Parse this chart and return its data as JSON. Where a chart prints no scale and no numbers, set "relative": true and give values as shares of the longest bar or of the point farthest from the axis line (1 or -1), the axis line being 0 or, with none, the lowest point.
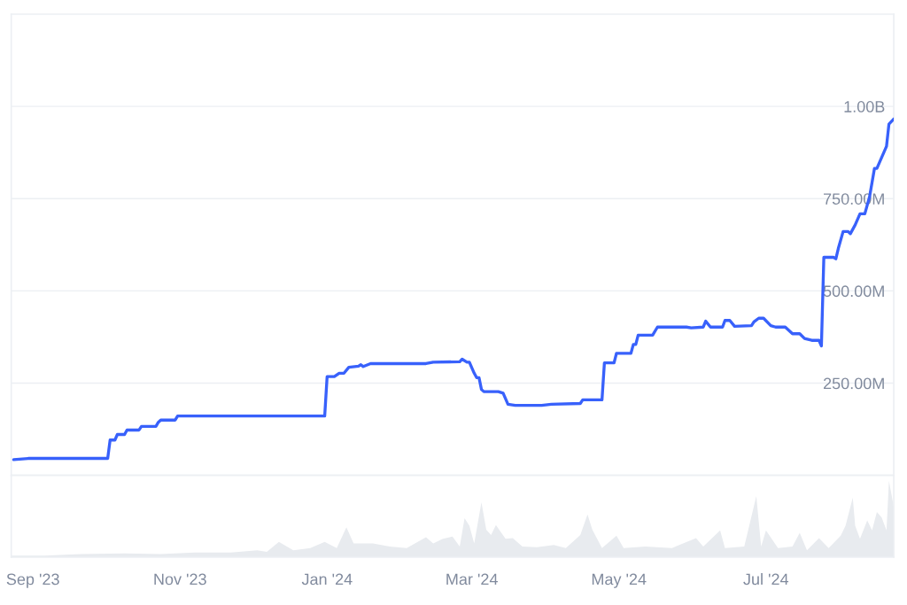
{
  "chart_data": [
    {
      "type": "line",
      "color": "#3861fb",
      "tick_labels": "y",
      "grid": "y",
      "xlim": [
        "2023-08-23",
        "2024-08-23"
      ],
      "ylim": [
        0,
        1250000000
      ],
      "yticks": [
        {
          "value": 250000000,
          "label": "250.00M"
        },
        {
          "value": 500000000,
          "label": "500.00M"
        },
        {
          "value": 750000000,
          "label": "750.00M"
        },
        {
          "value": 1000000000,
          "label": "1.00B"
        }
      ],
      "x": [
        "2023-08-24",
        "2023-08-30",
        "2023-10-02",
        "2023-10-03",
        "2023-10-05",
        "2023-10-06",
        "2023-10-09",
        "2023-10-10",
        "2023-10-15",
        "2023-10-16",
        "2023-10-22",
        "2023-10-23",
        "2023-10-24",
        "2023-10-30",
        "2023-10-31",
        "2023-12-31",
        "2024-01-01",
        "2024-01-04",
        "2024-01-06",
        "2024-01-08",
        "2024-01-10",
        "2024-01-14",
        "2024-01-15",
        "2024-01-16",
        "2024-01-19",
        "2024-02-11",
        "2024-02-14",
        "2024-02-25",
        "2024-02-26",
        "2024-02-28",
        "2024-02-29",
        "2024-03-02",
        "2024-03-03",
        "2024-03-04",
        "2024-03-05",
        "2024-03-06",
        "2024-03-12",
        "2024-03-14",
        "2024-03-16",
        "2024-03-19",
        "2024-03-30",
        "2024-04-03",
        "2024-04-15",
        "2024-04-16",
        "2024-04-24",
        "2024-04-25",
        "2024-04-29",
        "2024-04-30",
        "2024-05-06",
        "2024-05-07",
        "2024-05-08",
        "2024-05-09",
        "2024-05-15",
        "2024-05-17",
        "2024-05-29",
        "2024-05-31",
        "2024-06-05",
        "2024-06-06",
        "2024-06-08",
        "2024-06-13",
        "2024-06-14",
        "2024-06-16",
        "2024-06-18",
        "2024-06-25",
        "2024-06-26",
        "2024-06-28",
        "2024-06-30",
        "2024-07-03",
        "2024-07-05",
        "2024-07-09",
        "2024-07-12",
        "2024-07-15",
        "2024-07-17",
        "2024-07-20",
        "2024-07-23",
        "2024-07-24",
        "2024-07-25",
        "2024-07-29",
        "2024-07-30",
        "2024-07-31",
        "2024-08-02",
        "2024-08-04",
        "2024-08-05",
        "2024-08-07",
        "2024-08-09",
        "2024-08-11",
        "2024-08-13",
        "2024-08-15",
        "2024-08-16",
        "2024-08-20",
        "2024-08-21",
        "2024-08-23"
      ],
      "values": [
        43000000,
        46000000,
        46000000,
        96000000,
        96000000,
        111000000,
        111000000,
        123000000,
        123000000,
        133000000,
        133000000,
        144000000,
        150000000,
        150000000,
        161000000,
        161000000,
        268000000,
        268000000,
        277000000,
        277000000,
        293000000,
        296000000,
        300000000,
        295000000,
        303000000,
        303000000,
        307000000,
        308000000,
        315000000,
        307000000,
        307000000,
        277000000,
        265000000,
        265000000,
        233000000,
        227000000,
        227000000,
        223000000,
        193000000,
        190000000,
        190000000,
        193000000,
        195000000,
        205000000,
        205000000,
        305000000,
        305000000,
        331000000,
        331000000,
        355000000,
        355000000,
        380000000,
        380000000,
        402000000,
        402000000,
        400000000,
        402000000,
        418000000,
        402000000,
        402000000,
        420000000,
        420000000,
        404000000,
        406000000,
        416000000,
        426000000,
        426000000,
        406000000,
        402000000,
        402000000,
        384000000,
        384000000,
        371000000,
        366000000,
        366000000,
        351000000,
        591000000,
        591000000,
        587000000,
        615000000,
        661000000,
        661000000,
        655000000,
        679000000,
        709000000,
        709000000,
        756000000,
        832000000,
        832000000,
        892000000,
        952000000,
        966000000
      ]
    },
    {
      "type": "area",
      "relative": true,
      "color": "#e8ebef",
      "tick_labels": "x",
      "xlim": [
        "2023-08-23",
        "2024-08-23"
      ],
      "xticks": [
        {
          "value": "2023-09-01",
          "label": "Sep '23"
        },
        {
          "value": "2023-11-01",
          "label": "Nov '23"
        },
        {
          "value": "2024-01-01",
          "label": "Jan '24"
        },
        {
          "value": "2024-03-01",
          "label": "Mar '24"
        },
        {
          "value": "2024-05-01",
          "label": "May '24"
        },
        {
          "value": "2024-07-01",
          "label": "Jul '24"
        }
      ],
      "x": [
        "2023-08-23",
        "2023-09-06",
        "2023-09-21",
        "2023-10-09",
        "2023-10-24",
        "2023-11-07",
        "2023-11-22",
        "2023-12-03",
        "2023-12-07",
        "2023-12-12",
        "2023-12-18",
        "2023-12-25",
        "2023-12-31",
        "2024-01-05",
        "2024-01-09",
        "2024-01-12",
        "2024-01-20",
        "2024-01-27",
        "2024-02-03",
        "2024-02-11",
        "2024-02-14",
        "2024-02-18",
        "2024-02-22",
        "2024-02-25",
        "2024-02-27",
        "2024-02-29",
        "2024-03-02",
        "2024-03-05",
        "2024-03-07",
        "2024-03-09",
        "2024-03-11",
        "2024-03-15",
        "2024-03-18",
        "2024-03-22",
        "2024-03-28",
        "2024-04-04",
        "2024-04-09",
        "2024-04-15",
        "2024-04-18",
        "2024-04-20",
        "2024-04-24",
        "2024-04-30",
        "2024-05-03",
        "2024-05-12",
        "2024-05-23",
        "2024-06-02",
        "2024-06-05",
        "2024-06-12",
        "2024-06-14",
        "2024-06-22",
        "2024-06-27",
        "2024-06-29",
        "2024-07-01",
        "2024-07-06",
        "2024-07-12",
        "2024-07-15",
        "2024-07-18",
        "2024-07-23",
        "2024-07-27",
        "2024-08-01",
        "2024-08-03",
        "2024-08-06",
        "2024-08-07",
        "2024-08-09",
        "2024-08-12",
        "2024-08-14",
        "2024-08-16",
        "2024-08-18",
        "2024-08-20",
        "2024-08-21",
        "2024-08-23"
      ],
      "values": [
        0.02,
        0.02,
        0.04,
        0.05,
        0.04,
        0.06,
        0.06,
        0.09,
        0.07,
        0.2,
        0.09,
        0.12,
        0.2,
        0.12,
        0.39,
        0.18,
        0.18,
        0.14,
        0.12,
        0.26,
        0.18,
        0.24,
        0.27,
        0.14,
        0.51,
        0.41,
        0.18,
        0.72,
        0.36,
        0.29,
        0.42,
        0.24,
        0.25,
        0.14,
        0.13,
        0.16,
        0.12,
        0.29,
        0.56,
        0.36,
        0.12,
        0.28,
        0.12,
        0.14,
        0.12,
        0.25,
        0.14,
        0.35,
        0.12,
        0.14,
        0.8,
        0.14,
        0.35,
        0.12,
        0.14,
        0.32,
        0.09,
        0.25,
        0.12,
        0.28,
        0.41,
        0.78,
        0.41,
        0.24,
        0.48,
        0.35,
        0.59,
        0.52,
        0.35,
        1,
        0.66
      ]
    }
  ]
}
